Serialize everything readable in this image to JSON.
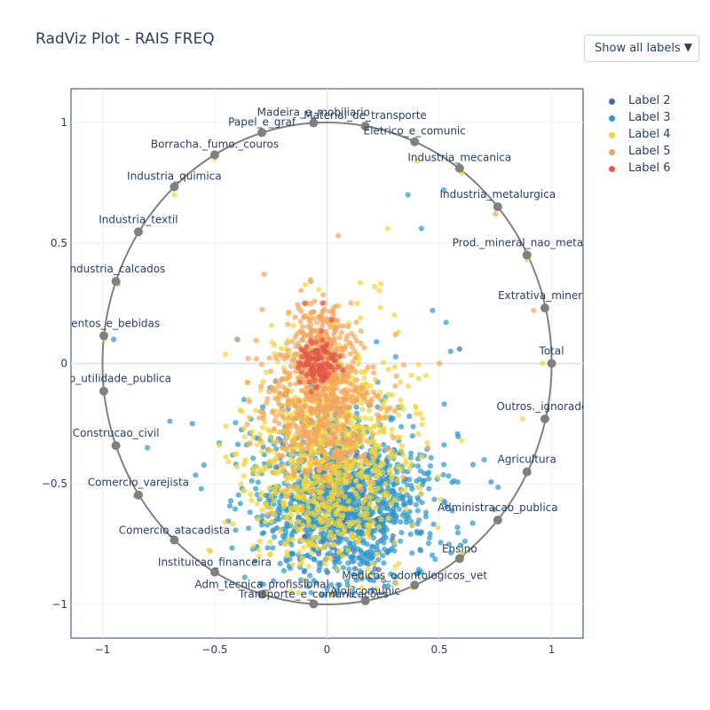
{
  "title": "RadViz Plot - RAIS FREQ",
  "dropdown": {
    "selected": "Show all labels",
    "arrow": "▼"
  },
  "chart_data": {
    "type": "scatter",
    "title": "RadViz Plot - RAIS FREQ",
    "xlim": [
      -1.14,
      1.14
    ],
    "ylim": [
      -1.14,
      1.14
    ],
    "x_ticks": [
      -1,
      -0.5,
      0,
      0.5,
      1
    ],
    "y_ticks": [
      -1,
      -0.5,
      0,
      0.5,
      1
    ],
    "x_tick_labels": [
      "−1",
      "−0.5",
      "0",
      "0.5",
      "1"
    ],
    "y_tick_labels": [
      "−1",
      "−0.5",
      "0",
      "0.5",
      "1"
    ],
    "grid": true,
    "circle_radius": 1,
    "circle_color": "#808080",
    "anchors": [
      {
        "name": "Total",
        "x": 1.0,
        "y": 0.0
      },
      {
        "name": "Extrativa_mineral",
        "x": 0.97,
        "y": 0.23
      },
      {
        "name": "Prod._mineral_nao_metalico",
        "x": 0.89,
        "y": 0.45
      },
      {
        "name": "Industria_metalurgica",
        "x": 0.76,
        "y": 0.65
      },
      {
        "name": "Industria_mecanica",
        "x": 0.59,
        "y": 0.81
      },
      {
        "name": "Eletrico_e_comunic",
        "x": 0.39,
        "y": 0.92
      },
      {
        "name": "Material_de_transporte",
        "x": 0.17,
        "y": 0.985
      },
      {
        "name": "Madeira_e_mobiliario",
        "x": -0.06,
        "y": 0.998
      },
      {
        "name": "Papel_e_graf",
        "x": -0.29,
        "y": 0.958
      },
      {
        "name": "Borracha._fumo._couros",
        "x": -0.5,
        "y": 0.866
      },
      {
        "name": "Industria_quimica",
        "x": -0.68,
        "y": 0.733
      },
      {
        "name": "Industria_textil",
        "x": -0.84,
        "y": 0.546
      },
      {
        "name": "Industria_calcados",
        "x": -0.94,
        "y": 0.341
      },
      {
        "name": "Alimentos_e_bebidas",
        "x": -0.994,
        "y": 0.115
      },
      {
        "name": "Servico_utilidade_publica",
        "x": -0.994,
        "y": -0.115
      },
      {
        "name": "Construcao_civil",
        "x": -0.94,
        "y": -0.341
      },
      {
        "name": "Comercio_varejista",
        "x": -0.84,
        "y": -0.546
      },
      {
        "name": "Comercio_atacadista",
        "x": -0.68,
        "y": -0.733
      },
      {
        "name": "Instituicao_financeira",
        "x": -0.5,
        "y": -0.866
      },
      {
        "name": "Adm_tecnica_profissional",
        "x": -0.29,
        "y": -0.958
      },
      {
        "name": "Transporte_e_comunicacoes",
        "x": -0.06,
        "y": -0.998
      },
      {
        "name": "Aloj_comunic",
        "x": 0.17,
        "y": -0.985
      },
      {
        "name": "Medicos_odontologicos_vet",
        "x": 0.39,
        "y": -0.92
      },
      {
        "name": "Ensino",
        "x": 0.59,
        "y": -0.81
      },
      {
        "name": "Administracao_publica",
        "x": 0.76,
        "y": -0.65
      },
      {
        "name": "Agricultura",
        "x": 0.89,
        "y": -0.45
      },
      {
        "name": "Outros._ignorados",
        "x": 0.97,
        "y": -0.23
      }
    ],
    "series": [
      {
        "name": "Label 2",
        "color": "#4a6aa0",
        "clusters": [
          {
            "cx": 0.07,
            "cy": -0.6,
            "sx": 0.13,
            "sy": 0.14,
            "n": 170
          }
        ],
        "points": [
          [
            0.59,
            0.06
          ],
          [
            0.35,
            -0.48
          ],
          [
            0.42,
            -0.7
          ],
          [
            -0.18,
            -0.82
          ],
          [
            0.6,
            -0.8
          ],
          [
            0.27,
            -0.63
          ],
          [
            -0.1,
            -0.72
          ]
        ]
      },
      {
        "name": "Label 3",
        "color": "#2e97c9",
        "clusters": [
          {
            "cx": 0.08,
            "cy": -0.6,
            "sx": 0.2,
            "sy": 0.15,
            "n": 950
          },
          {
            "cx": 0.0,
            "cy": -0.35,
            "sx": 0.22,
            "sy": 0.15,
            "n": 160
          }
        ],
        "points": [
          [
            0.36,
            0.7
          ],
          [
            0.52,
            0.72
          ],
          [
            0.22,
            0.09
          ],
          [
            -0.48,
            -0.33
          ],
          [
            -0.56,
            -0.52
          ],
          [
            -0.42,
            -0.38
          ],
          [
            -0.7,
            -0.24
          ],
          [
            -0.37,
            -0.15
          ],
          [
            -0.4,
            0.1
          ],
          [
            0.47,
            0.22
          ],
          [
            0.53,
            0.17
          ],
          [
            0.65,
            -0.42
          ],
          [
            0.7,
            -0.4
          ],
          [
            0.52,
            -0.42
          ],
          [
            0.49,
            -0.48
          ],
          [
            -0.85,
            -0.55
          ],
          [
            -0.8,
            -0.35
          ],
          [
            -0.95,
            0.1
          ],
          [
            -0.6,
            -0.25
          ],
          [
            0.42,
            0.56
          ],
          [
            0.3,
            -0.36
          ],
          [
            0.55,
            0.05
          ]
        ]
      },
      {
        "name": "Label 4",
        "color": "#f2d43a",
        "clusters": [
          {
            "cx": 0.0,
            "cy": -0.43,
            "sx": 0.17,
            "sy": 0.2,
            "n": 800
          },
          {
            "cx": 0.02,
            "cy": -0.1,
            "sx": 0.17,
            "sy": 0.15,
            "n": 150
          }
        ],
        "points": [
          [
            0.27,
            0.56
          ],
          [
            0.04,
            0.17
          ],
          [
            0.24,
            0.33
          ],
          [
            0.44,
            -0.05
          ],
          [
            0.6,
            -0.32
          ],
          [
            -0.19,
            -0.58
          ],
          [
            0.38,
            -0.93
          ],
          [
            0.18,
            -0.98
          ],
          [
            -0.27,
            -0.95
          ],
          [
            -0.5,
            -0.86
          ],
          [
            -0.83,
            -0.55
          ],
          [
            -0.94,
            -0.34
          ],
          [
            -0.68,
            0.7
          ],
          [
            -0.5,
            0.85
          ],
          [
            0.4,
            0.84
          ],
          [
            0.6,
            0.79
          ],
          [
            0.89,
            0.43
          ],
          [
            0.96,
            0.0
          ],
          [
            0.87,
            -0.23
          ],
          [
            0.89,
            -0.45
          ],
          [
            0.6,
            -0.79
          ],
          [
            -0.99,
            0.1
          ],
          [
            -0.99,
            -0.12
          ],
          [
            0.3,
            0.2
          ],
          [
            -0.35,
            -0.15
          ],
          [
            0.25,
            -0.28
          ],
          [
            -0.52,
            -0.78
          ]
        ]
      },
      {
        "name": "Label 5",
        "color": "#f4a55c",
        "clusters": [
          {
            "cx": -0.03,
            "cy": 0.06,
            "sx": 0.06,
            "sy": 0.1,
            "n": 280
          },
          {
            "cx": -0.02,
            "cy": -0.2,
            "sx": 0.13,
            "sy": 0.15,
            "n": 480
          }
        ],
        "points": [
          [
            0.05,
            0.53
          ],
          [
            -0.28,
            0.37
          ],
          [
            0.17,
            -0.4
          ],
          [
            0.45,
            -0.35
          ],
          [
            -0.1,
            -0.9
          ],
          [
            0.5,
            0.0
          ],
          [
            0.92,
            0.22
          ],
          [
            0.75,
            0.62
          ],
          [
            -0.93,
            0.33
          ]
        ]
      },
      {
        "name": "Label 6",
        "color": "#e1574a",
        "clusters": [
          {
            "cx": -0.04,
            "cy": 0.0,
            "sx": 0.04,
            "sy": 0.05,
            "n": 110
          }
        ],
        "points": [
          [
            -0.1,
            0.25
          ],
          [
            0.02,
            0.18
          ],
          [
            -0.02,
            0.25
          ]
        ]
      }
    ]
  },
  "legend": [
    {
      "label": "Label 2",
      "color": "#4a6aa0"
    },
    {
      "label": "Label 3",
      "color": "#2e97c9"
    },
    {
      "label": "Label 4",
      "color": "#f2d43a"
    },
    {
      "label": "Label 5",
      "color": "#f4a55c"
    },
    {
      "label": "Label 6",
      "color": "#e1574a"
    }
  ]
}
